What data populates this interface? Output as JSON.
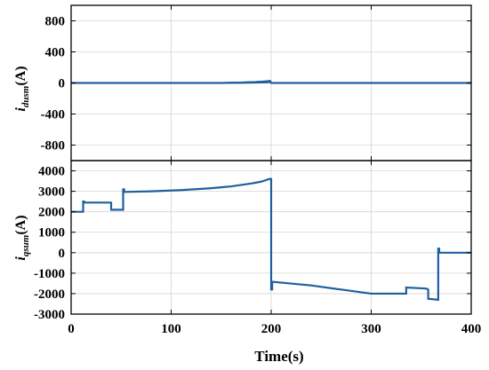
{
  "chart_data": [
    {
      "type": "line",
      "ylabel_main": "i",
      "ylabel_sub": "dusm",
      "ylabel_unit": "(A)",
      "xlim": [
        0,
        400
      ],
      "ylim": [
        -1000,
        1000
      ],
      "yticks": [
        800,
        400,
        0,
        -400,
        -800
      ],
      "ytick_labels": [
        "800",
        "400",
        "0",
        "-400",
        "-800"
      ],
      "grid": true,
      "color": "#1f5f9e",
      "series": [
        {
          "x": [
            0,
            20,
            50,
            100,
            150,
            170,
            185,
            195,
            199,
            200,
            201,
            250,
            300,
            350,
            400
          ],
          "y": [
            0,
            0,
            0,
            0,
            0,
            5,
            12,
            20,
            25,
            0,
            0,
            0,
            0,
            0,
            0
          ],
          "band": 12
        }
      ]
    },
    {
      "type": "line",
      "ylabel_main": "i",
      "ylabel_sub": "qsum",
      "ylabel_unit": "(A)",
      "xlabel": "Time(s)",
      "xlim": [
        0,
        400
      ],
      "ylim": [
        -3000,
        4500
      ],
      "yticks": [
        4000,
        3000,
        2000,
        1000,
        0,
        -1000,
        -2000,
        -3000
      ],
      "ytick_labels": [
        "4000",
        "3000",
        "2000",
        "1000",
        "0",
        "-1000",
        "-2000",
        "-3000"
      ],
      "xticks": [
        0,
        100,
        200,
        300,
        400
      ],
      "xtick_labels": [
        "0",
        "100",
        "200",
        "300",
        "400"
      ],
      "grid": true,
      "color": "#1f5f9e",
      "series": [
        {
          "x": [
            0,
            12,
            12,
            13,
            13,
            40,
            40,
            52,
            52,
            53,
            53,
            80,
            110,
            140,
            160,
            180,
            190,
            198,
            198,
            200,
            200,
            201,
            201,
            240,
            270,
            300,
            300,
            335,
            335,
            355,
            355,
            357,
            357,
            367,
            367,
            368,
            368,
            400
          ],
          "y": [
            2000,
            2000,
            2500,
            2500,
            2450,
            2450,
            2100,
            2100,
            3100,
            3100,
            2970,
            3000,
            3060,
            3150,
            3240,
            3380,
            3470,
            3600,
            3600,
            3600,
            -1800,
            -1800,
            -1420,
            -1600,
            -1800,
            -2000,
            -2000,
            -2000,
            -1700,
            -1750,
            -1750,
            -1800,
            -2250,
            -2300,
            200,
            200,
            0,
            0
          ]
        }
      ]
    }
  ]
}
